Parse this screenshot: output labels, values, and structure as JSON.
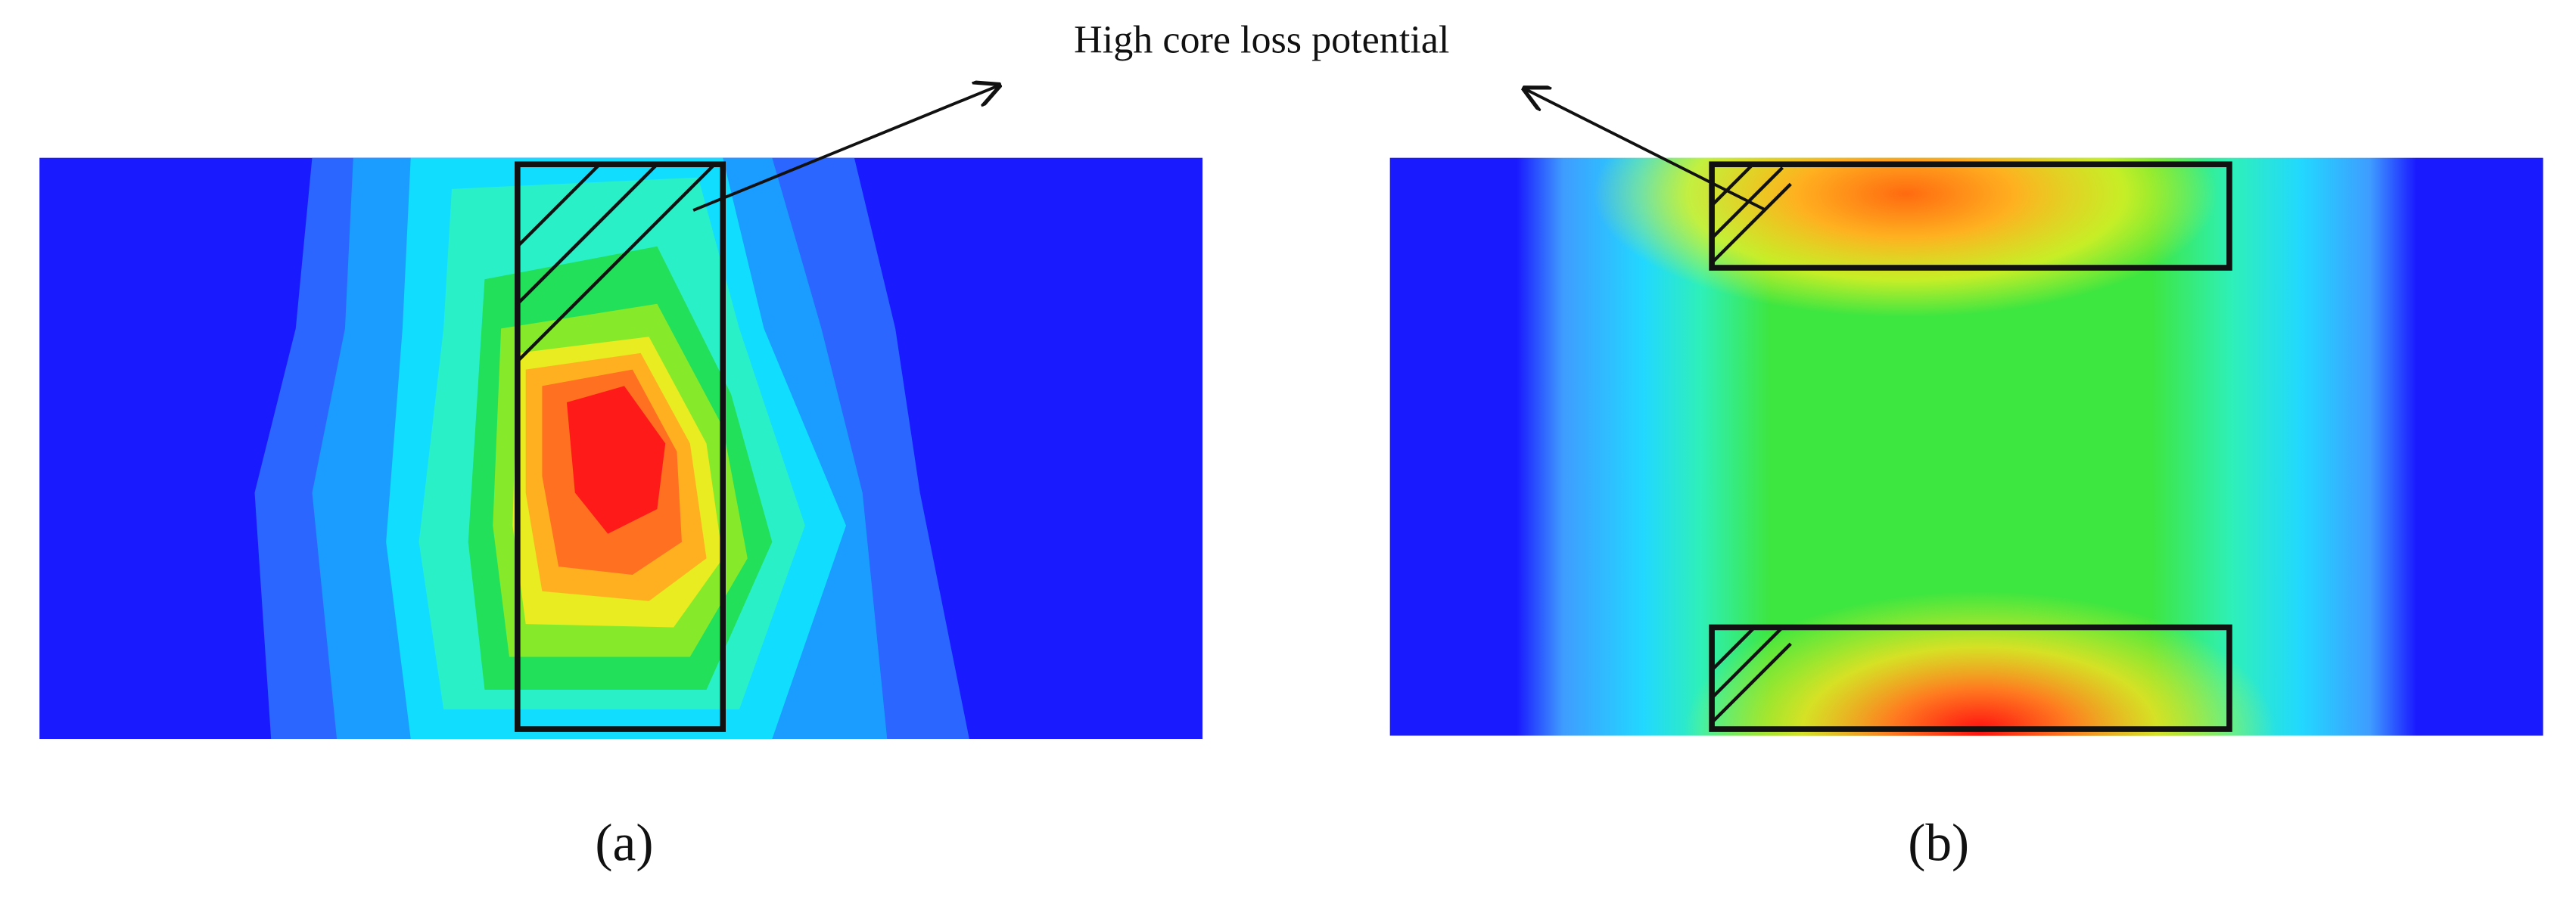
{
  "annotation": "High core loss potential",
  "panels": [
    {
      "label": "(a)"
    },
    {
      "label": "(b)"
    }
  ]
}
